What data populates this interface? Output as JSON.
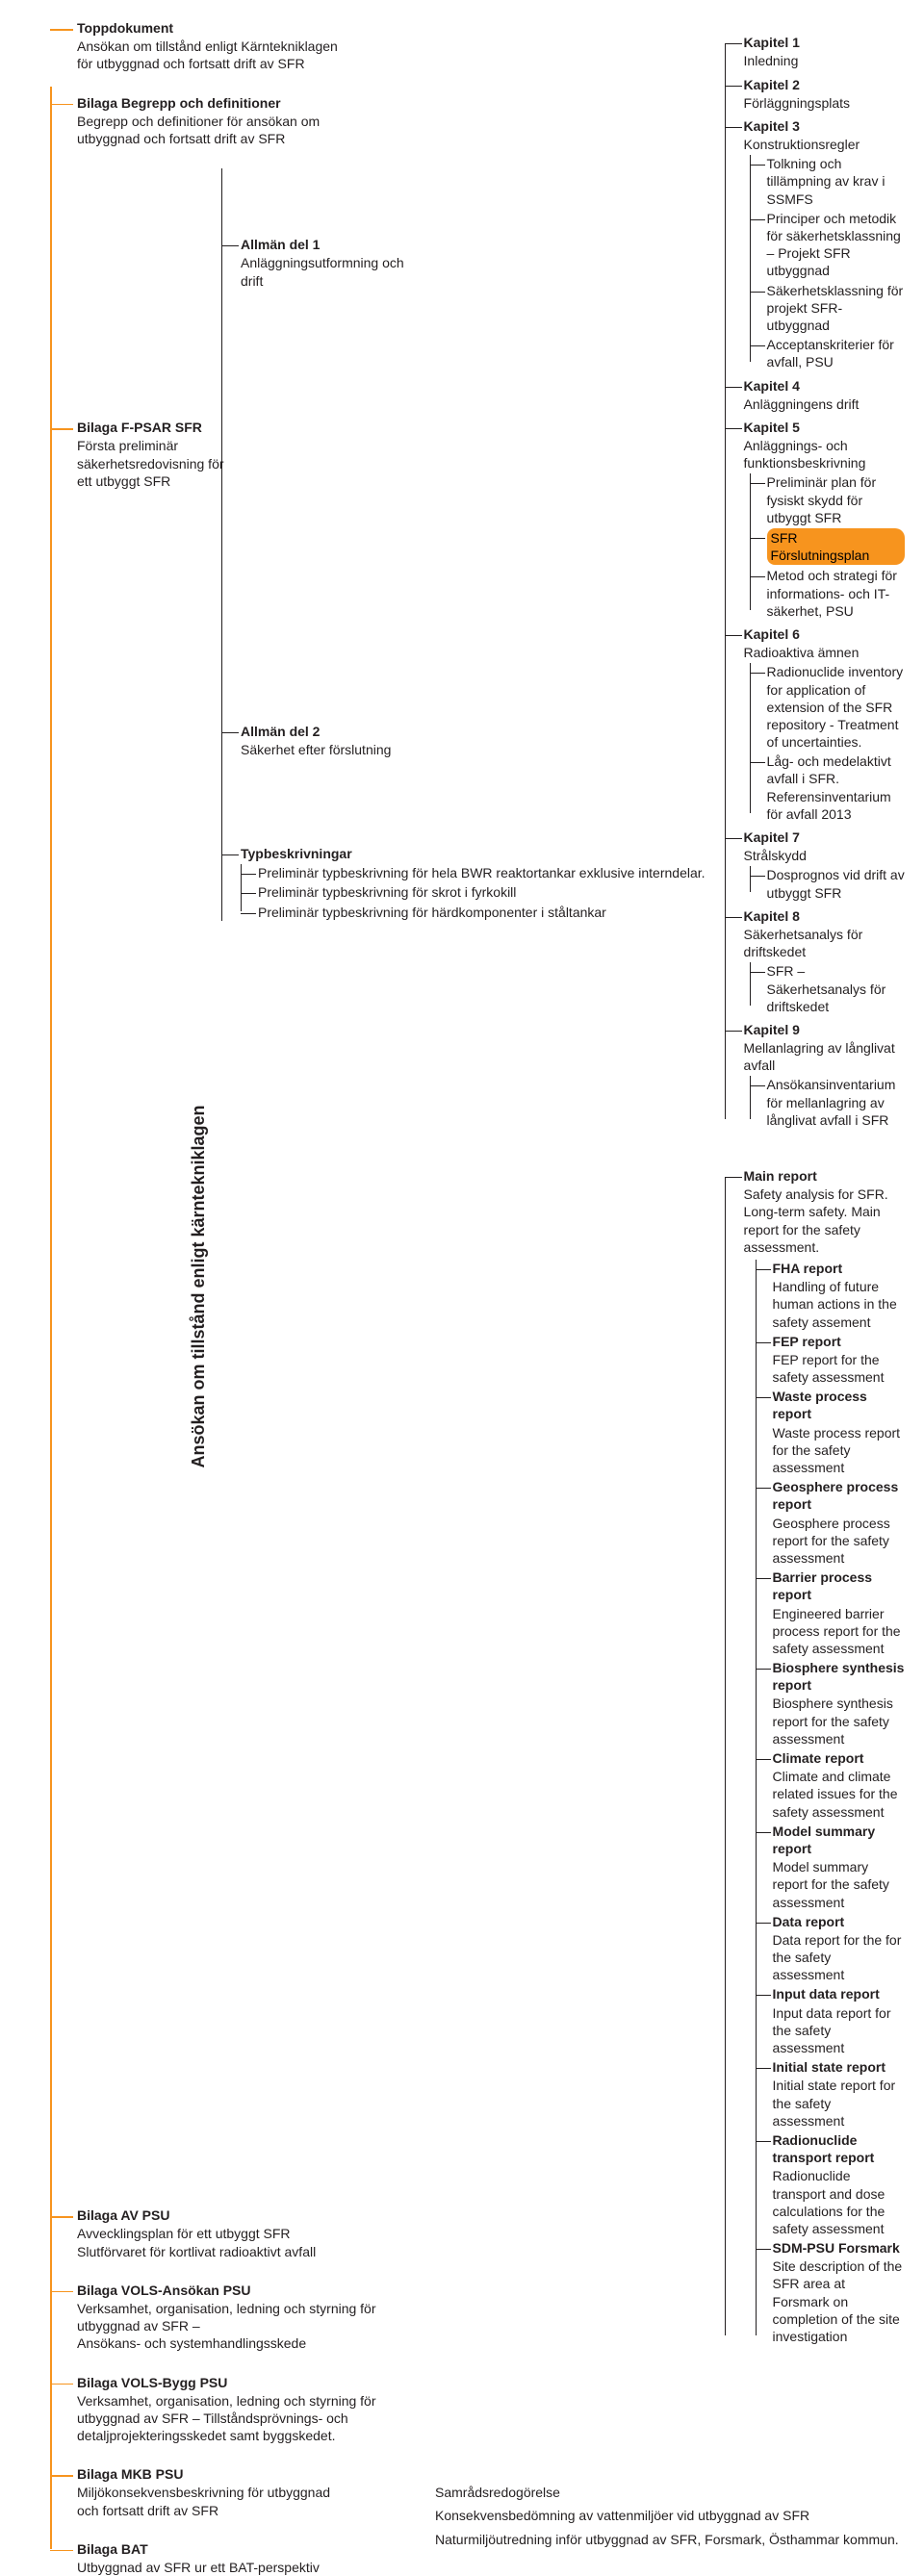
{
  "colors": {
    "accent": "#f7941e",
    "text": "#231f20",
    "bg": "#ffffff"
  },
  "root_label": "Ansökan om tillstånd enligt kärntekniklagen",
  "highlighted_item": "kap5_sub1",
  "lvl1": [
    {
      "id": "topp",
      "heading": "Toppdokument",
      "desc": "Ansökan om tillstånd enligt Kärntekniklagen för utbyggnad och fortsatt drift av SFR"
    },
    {
      "id": "begrepp",
      "heading": "Bilaga Begrepp och definitioner",
      "desc": "Begrepp och definitioner för ansökan om utbyggnad och fortsatt drift av SFR"
    },
    {
      "id": "fpsar",
      "heading": "Bilaga F-PSAR SFR",
      "desc": "Första preliminär säkerhetsredovisning för ett utbyggt SFR"
    },
    {
      "id": "avpsu",
      "heading": "Bilaga AV PSU",
      "desc": "Avvecklingsplan för ett utbyggt SFR\nSlutförvaret för kortlivat radioaktivt avfall"
    },
    {
      "id": "vols_ansokan",
      "heading": "Bilaga VOLS-Ansökan PSU",
      "desc": "Verksamhet, organisation, ledning och styrning för utbyggnad av SFR –\nAnsökans- och systemhandlingsskede"
    },
    {
      "id": "vols_bygg",
      "heading": "Bilaga VOLS-Bygg PSU",
      "desc": "Verksamhet, organisation, ledning och styrning för utbyggnad av SFR – Tillståndsprövnings- och detaljprojekteringsskedet samt byggskedet."
    },
    {
      "id": "mkb",
      "heading": "Bilaga MKB PSU",
      "desc": "Miljökonsekvensbeskrivning för utbyggnad och fortsatt drift av SFR"
    },
    {
      "id": "bat",
      "heading": "Bilaga BAT",
      "desc": "Utbyggnad av SFR ur ett BAT-perspektiv"
    }
  ],
  "fpsar_children": [
    {
      "id": "allman1",
      "heading": "Allmän del 1",
      "desc": "Anläggningsutformning och drift"
    },
    {
      "id": "allman2",
      "heading": "Allmän del 2",
      "desc": "Säkerhet efter förslutning"
    },
    {
      "id": "typbeskr",
      "heading": "Typbeskrivningar",
      "desc": ""
    }
  ],
  "kapitel": [
    {
      "h": "Kapitel 1",
      "d": "Inledning",
      "sub": []
    },
    {
      "h": "Kapitel 2",
      "d": "Förläggningsplats",
      "sub": []
    },
    {
      "h": "Kapitel 3",
      "d": "Konstruktionsregler",
      "sub": [
        "Tolkning och tillämpning av krav i SSMFS",
        "Principer och metodik för säkerhetsklassning – Projekt SFR utbyggnad",
        "Säkerhetsklassning för projekt SFR-utbyggnad",
        "Acceptanskriterier för avfall, PSU"
      ]
    },
    {
      "h": "Kapitel 4",
      "d": "Anläggningens drift",
      "sub": []
    },
    {
      "h": "Kapitel 5",
      "d": "Anläggnings- och funktionsbeskrivning",
      "sub": [
        "Preliminär plan för fysiskt skydd för utbyggt SFR",
        "SFR Förslutningsplan",
        "Metod och strategi för informations- och IT-säkerhet, PSU"
      ]
    },
    {
      "h": "Kapitel 6",
      "d": "Radioaktiva ämnen",
      "sub": [
        "Radionuclide inventory for application of extension of the SFR repository - Treatment of uncertainties.",
        "Låg- och medelaktivt avfall i SFR.\nReferensinventarium för avfall 2013"
      ]
    },
    {
      "h": "Kapitel 7",
      "d": "Strålskydd",
      "sub": [
        "Dosprognos vid drift av utbyggt SFR"
      ]
    },
    {
      "h": "Kapitel 8",
      "d": "Säkerhetsanalys för driftskedet",
      "sub": [
        "SFR – Säkerhetsanalys för driftskedet"
      ]
    },
    {
      "h": "Kapitel 9",
      "d": "Mellanlagring av långlivat avfall",
      "sub": [
        "Ansökansinventarium för mellanlagring av långlivat avfall i SFR"
      ]
    }
  ],
  "main_report": {
    "h": "Main report",
    "d": "Safety analysis for SFR. Long-term safety. Main report for the safety assessment."
  },
  "reports": [
    {
      "h": "FHA report",
      "d": "Handling of future human actions in the safety assement"
    },
    {
      "h": "FEP report",
      "d": "FEP report for the safety assessment"
    },
    {
      "h": "Waste process report",
      "d": "Waste process report for the safety assessment"
    },
    {
      "h": "Geosphere process report",
      "d": "Geosphere process report for the safety assessment"
    },
    {
      "h": "Barrier process report",
      "d": "Engineered barrier process report for the safety assessment"
    },
    {
      "h": "Biosphere synthesis report",
      "d": "Biosphere synthesis report for the safety assessment"
    },
    {
      "h": "Climate report",
      "d": "Climate and climate related issues for the safety assessment"
    },
    {
      "h": "Model summary report",
      "d": "Model summary report for the safety assessment"
    },
    {
      "h": "Data report",
      "d": "Data report for the for the safety assessment"
    },
    {
      "h": "Input data report",
      "d": "Input data report for the safety assessment"
    },
    {
      "h": "Initial state report",
      "d": "Initial state report for the safety assessment"
    },
    {
      "h": "Radionuclide transport report",
      "d": "Radionuclide transport and dose calculations for the safety assessment"
    },
    {
      "h": "SDM-PSU Forsmark",
      "d": "Site description of the SFR area at Forsmark on completion of the site investigation"
    }
  ],
  "typbeskr_items": [
    "Preliminär typbeskrivning för hela BWR reaktortankar exklusive interndelar.",
    "Preliminär typbeskrivning för skrot i fyrkokill",
    "Preliminär typbeskrivning för härdkomponenter i ståltankar"
  ],
  "bottom_free": [
    "Samrådsredogörelse",
    "Konsekvensbedömning av vattenmiljöer vid utbyggnad av SFR",
    "Naturmiljöutredning inför utbyggnad av SFR, Forsmark, Östhammar kommun."
  ]
}
